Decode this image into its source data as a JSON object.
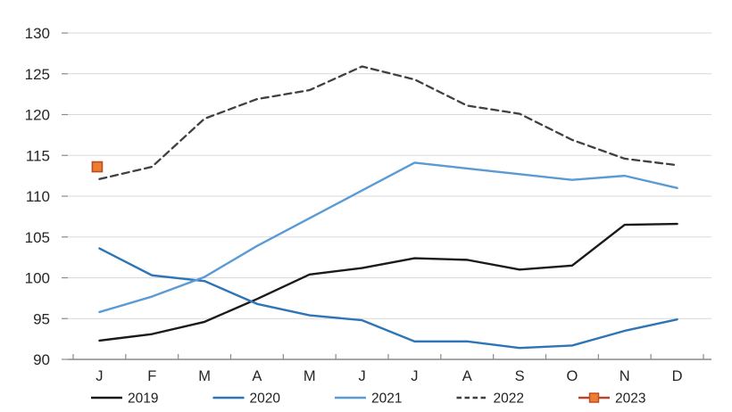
{
  "chart_data": {
    "type": "line",
    "title": "",
    "xlabel": "",
    "ylabel": "",
    "x_labels": [
      "J",
      "F",
      "M",
      "A",
      "M",
      "J",
      "J",
      "A",
      "S",
      "O",
      "N",
      "D"
    ],
    "ylim": [
      90,
      130
    ],
    "y_ticks": [
      130,
      125,
      120,
      115,
      110,
      105,
      100,
      95,
      90
    ],
    "grid": true,
    "legend_position": "bottom",
    "grid_color": "#d9d9d9",
    "axis_color": "#8a8a8a",
    "label_color": "#262626",
    "series": [
      {
        "name": "2019",
        "color": "#1a1a1a",
        "style": "solid",
        "values": [
          92.3,
          93.1,
          94.6,
          97.4,
          100.4,
          101.2,
          102.4,
          102.2,
          101.0,
          101.5,
          106.5,
          106.6
        ]
      },
      {
        "name": "2020",
        "color": "#2e75b6",
        "style": "solid",
        "values": [
          103.6,
          100.3,
          99.6,
          96.8,
          95.4,
          94.8,
          92.2,
          92.2,
          91.4,
          91.7,
          93.5,
          94.9
        ]
      },
      {
        "name": "2021",
        "color": "#5b9bd5",
        "style": "solid",
        "values": [
          95.8,
          97.7,
          100.1,
          103.9,
          107.3,
          110.7,
          114.1,
          113.4,
          112.7,
          112.0,
          112.5,
          111.0
        ]
      },
      {
        "name": "2022",
        "color": "#404040",
        "style": "dashed",
        "values": [
          112.1,
          113.6,
          119.5,
          121.9,
          123.0,
          125.9,
          124.3,
          121.1,
          120.1,
          116.9,
          114.6,
          113.8
        ]
      },
      {
        "name": "2023",
        "color": "#b5472e",
        "style": "solid",
        "marker": "square",
        "marker_fill": "#ed7d31",
        "marker_border": "#bc4a22",
        "values": [
          113.6
        ]
      }
    ]
  }
}
